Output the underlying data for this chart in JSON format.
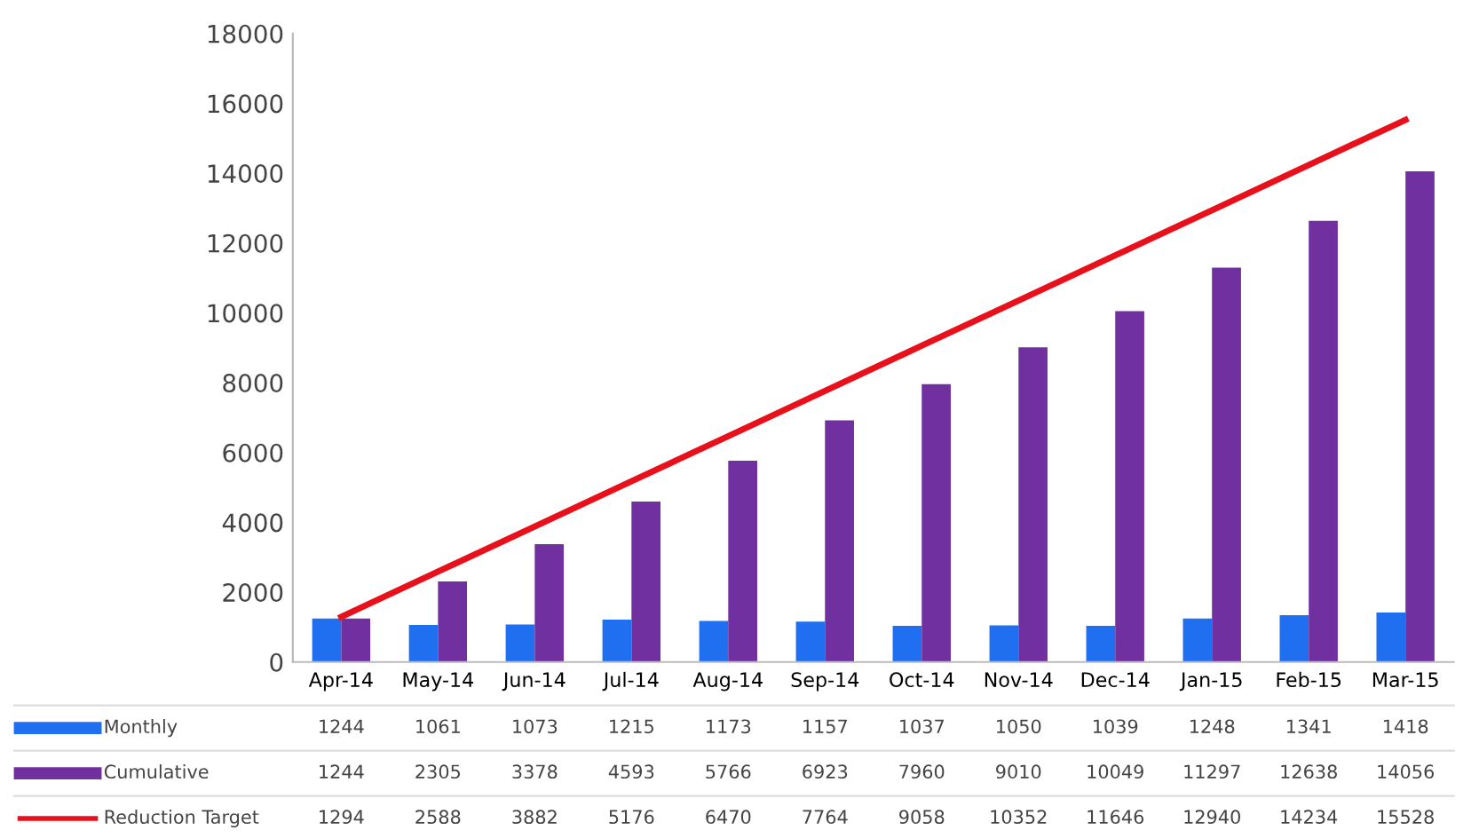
{
  "chart_data": {
    "type": "bar",
    "categories": [
      "Apr-14",
      "May-14",
      "Jun-14",
      "Jul-14",
      "Aug-14",
      "Sep-14",
      "Oct-14",
      "Nov-14",
      "Dec-14",
      "Jan-15",
      "Feb-15",
      "Mar-15"
    ],
    "series": [
      {
        "name": "Monthly",
        "color": "#1f6ff0",
        "values": [
          1244,
          1061,
          1073,
          1215,
          1173,
          1157,
          1037,
          1050,
          1039,
          1248,
          1341,
          1418
        ]
      },
      {
        "name": "Cumulative",
        "color": "#7030a0",
        "values": [
          1244,
          2305,
          3378,
          4593,
          5766,
          6923,
          7960,
          9010,
          10049,
          11297,
          12638,
          14056
        ]
      },
      {
        "name": "Reduction Target",
        "type": "line",
        "color": "#e8101a",
        "values": [
          1294,
          2588,
          3882,
          5176,
          6470,
          7764,
          9058,
          10352,
          11646,
          12940,
          14234,
          15528
        ]
      }
    ],
    "ylim": [
      0,
      18000
    ],
    "yticks": [
      0,
      2000,
      4000,
      6000,
      8000,
      10000,
      12000,
      14000,
      16000,
      18000
    ],
    "data_labels": true,
    "legend": "bottom"
  }
}
